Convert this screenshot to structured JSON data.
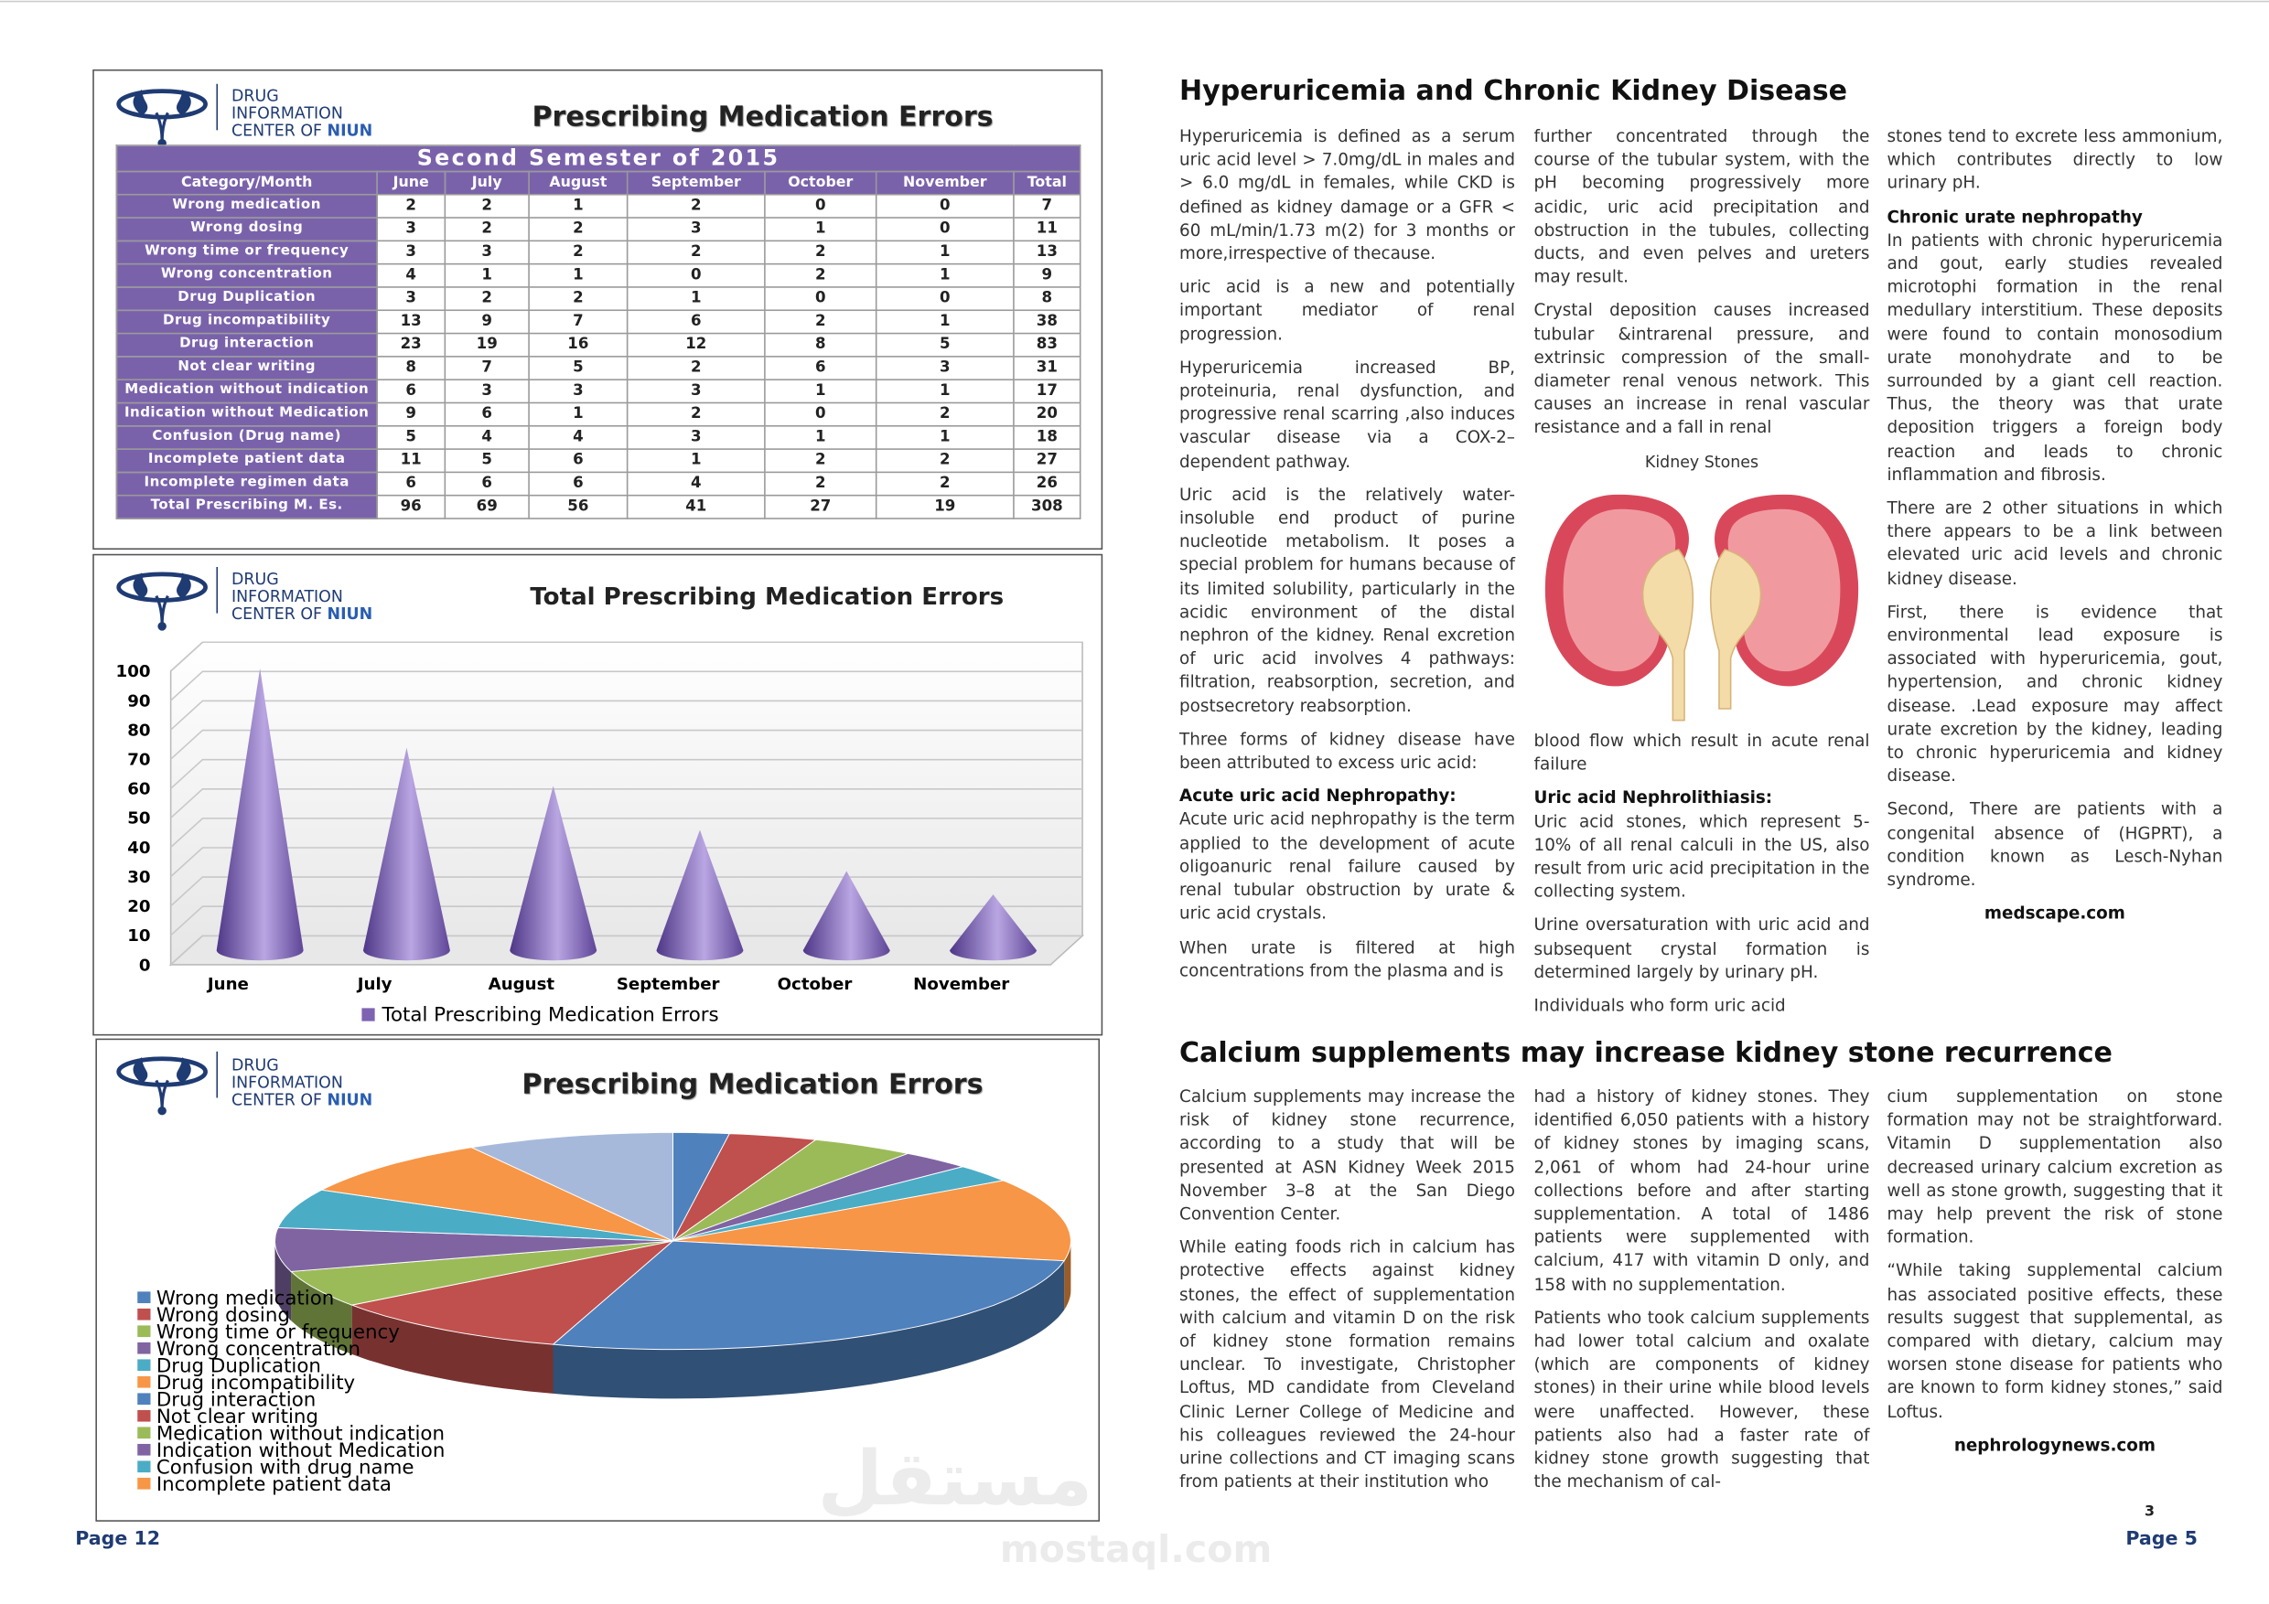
{
  "logo": {
    "line1": "DRUG",
    "line2": "INFORMATION",
    "line3": "CENTER OF",
    "highlight": "NIUN"
  },
  "table": {
    "title": "Prescribing Medication Errors",
    "subtitle": "Second Semester of 2015",
    "header": [
      "Category/Month",
      "June",
      "July",
      "August",
      "September",
      "October",
      "November",
      "Total"
    ],
    "rows": [
      [
        "Wrong medication",
        2,
        2,
        1,
        2,
        0,
        0,
        7
      ],
      [
        "Wrong dosing",
        3,
        2,
        2,
        3,
        1,
        0,
        11
      ],
      [
        "Wrong time or frequency",
        3,
        3,
        2,
        2,
        2,
        1,
        13
      ],
      [
        "Wrong concentration",
        4,
        1,
        1,
        0,
        2,
        1,
        9
      ],
      [
        "Drug Duplication",
        3,
        2,
        2,
        1,
        0,
        0,
        8
      ],
      [
        "Drug incompatibility",
        13,
        9,
        7,
        6,
        2,
        1,
        38
      ],
      [
        "Drug interaction",
        23,
        19,
        16,
        12,
        8,
        5,
        83
      ],
      [
        "Not clear writing",
        8,
        7,
        5,
        2,
        6,
        3,
        31
      ],
      [
        "Medication without indication",
        6,
        3,
        3,
        3,
        1,
        1,
        17
      ],
      [
        "Indication without Medication",
        9,
        6,
        1,
        2,
        0,
        2,
        20
      ],
      [
        "Confusion (Drug name)",
        5,
        4,
        4,
        3,
        1,
        1,
        18
      ],
      [
        "Incomplete patient data",
        11,
        5,
        6,
        1,
        2,
        2,
        27
      ],
      [
        "Incomplete regimen data",
        6,
        6,
        6,
        4,
        2,
        2,
        26
      ],
      [
        "Total Prescribing M. Es.",
        96,
        69,
        56,
        41,
        27,
        19,
        308
      ]
    ]
  },
  "chart_data": [
    {
      "type": "cone",
      "title": "Total Prescribing Medication Errors",
      "categories": [
        "June",
        "July",
        "August",
        "September",
        "October",
        "November"
      ],
      "series": [
        {
          "name": "Total Prescribing Medication Errors",
          "color": "#7e63b3",
          "values": [
            96,
            69,
            56,
            41,
            27,
            19
          ]
        }
      ],
      "ylim": [
        0,
        100
      ],
      "yticks": [
        0,
        10,
        20,
        30,
        40,
        50,
        60,
        70,
        80,
        90,
        100
      ],
      "grid": true,
      "legend": "bottom"
    },
    {
      "type": "pie",
      "title": "Prescribing Medication Errors",
      "categories": [
        "Wrong medication",
        "Wrong dosing",
        "Wrong time or frequency",
        "Wrong concentration",
        "Drug Duplication",
        "Drug incompatibility",
        "Drug interaction",
        "Not clear writing",
        "Medication without indication",
        "Indication without Medication",
        "Confusion with drug name",
        "Incomplete patient data",
        null
      ],
      "values": [
        7,
        11,
        13,
        9,
        8,
        38,
        83,
        31,
        17,
        20,
        18,
        27,
        26
      ],
      "colors": [
        "#4f81bd",
        "#c0504d",
        "#9bbb59",
        "#8064a2",
        "#4bacc6",
        "#f79646",
        "#4f81bd",
        "#c0504d",
        "#9bbb59",
        "#8064a2",
        "#4bacc6",
        "#f79646",
        "#a7b9db"
      ],
      "legend": "left"
    }
  ],
  "articles": [
    {
      "title": "Hyperuricemia and Chronic Kidney Disease",
      "columns": [
        [
          {
            "p": "Hyperuricemia is defined as a serum uric acid level > 7.0mg/dL in males and > 6.0 mg/dL in females, while CKD is defined as kidney damage or a GFR < 60 mL/min/1.73 m(2) for 3 months or more,irrespective of thecause."
          },
          {
            "p": "uric acid is a new and potentially important mediator of renal progression."
          },
          {
            "p": "Hyperuricemia increased BP, proteinuria, renal dysfunction, and progressive renal scarring ,also induces vascular disease via a COX-2–dependent pathway."
          },
          {
            "p": "Uric acid is the relatively water-insoluble end product of purine nucleotide metabolism. It poses a special problem for humans because of its limited solubility, particularly in the acidic environment of the distal nephron of the kidney. Renal excretion of uric acid involves 4 pathways: filtration, reabsorption, secretion, and postsecretory reabsorption."
          },
          {
            "p": "Three forms of kidney disease have been attributed to excess uric acid:"
          },
          {
            "h": "Acute uric acid Nephropathy:"
          },
          {
            "p": "Acute uric acid nephropathy is the term applied to the development of acute oligoanuric renal failure caused by renal tubular obstruction by urate & uric acid crystals."
          },
          {
            "p": "When urate is filtered at high concentrations from the plasma and is"
          }
        ],
        [
          {
            "p": "further concentrated through the course of the tubular system, with the pH becoming progressively more acidic, uric acid precipitation and obstruction in the tubules, collecting ducts, and even pelves and ureters may result."
          },
          {
            "p": "Crystal deposition causes increased tubular &intrarenal pressure, and extrinsic compression of the small-diameter renal venous network. This causes an increase in renal vascular resistance and a fall in renal"
          },
          {
            "caption": "Kidney Stones"
          },
          {
            "p": "blood flow which result in acute renal failure"
          },
          {
            "h": "Uric acid Nephrolithiasis:"
          },
          {
            "p": "Uric acid stones, which represent 5-10% of all renal calculi in the US, also result from uric acid precipitation in the collecting system."
          },
          {
            "p": "Urine oversaturation with uric acid and subsequent crystal formation is determined largely by urinary pH."
          },
          {
            "p": "Individuals who form uric acid"
          }
        ],
        [
          {
            "p": "stones tend to excrete less ammonium, which contributes directly to low urinary pH."
          },
          {
            "h": "Chronic urate nephropathy"
          },
          {
            "p": "In patients with chronic hyperuricemia and gout, early studies revealed microtophi formation in the renal medullary interstitium. These deposits were found to contain monosodium urate monohydrate and to be surrounded by a giant cell reaction. Thus, the theory was that urate deposition triggers a foreign body reaction and leads to chronic inflammation and fibrosis."
          },
          {
            "p": "There are 2 other situations in which there appears to be a link between elevated uric acid levels and chronic kidney disease."
          },
          {
            "p": "First, there is evidence that environmental lead exposure is associated with hyperuricemia, gout, hypertension, and chronic kidney disease. .Lead exposure may affect urate excretion by the kidney, leading to chronic hyperuricemia and kidney disease."
          },
          {
            "p": "Second, There are patients with a congenital absence of (HGPRT), a condition known as Lesch-Nyhan syndrome."
          },
          {
            "source": "medscape.com"
          }
        ]
      ]
    },
    {
      "title": "Calcium supplements may increase kidney stone recurrence",
      "columns": [
        [
          {
            "p": "Calcium supplements may increase the risk of kidney stone recurrence, according to a study that will be presented at ASN Kidney Week 2015 November 3–8 at the San Diego Convention Center."
          },
          {
            "p": "While eating foods rich in calcium has protective effects against kidney stones, the effect of supplementation with calcium and vitamin D on the risk of kidney stone formation remains unclear. To investigate, Christopher Loftus, MD candidate from Cleveland Clinic Lerner College of Medicine and his colleagues reviewed the 24-hour urine collections and CT imaging scans from patients at their institution who"
          }
        ],
        [
          {
            "p": "had a history of kidney stones. They identified 6,050 patients with a history of kidney stones by imaging scans, 2,061 of whom had 24-hour urine collections before and after starting supplementation. A total of 1486 patients were supplemented with calcium, 417 with vitamin D only, and 158 with no supplementation."
          },
          {
            "p": "Patients who took calcium supplements had lower total calcium and oxalate (which are components of kidney stones) in their urine while blood levels were unaffected. However, these patients also had a faster rate of kidney stone growth suggesting that the mechanism of cal-"
          }
        ],
        [
          {
            "p": "cium supplementation on stone formation may not be straightforward. Vitamin D supplementation also decreased urinary calcium excretion as well as stone growth, suggesting that it may help prevent the risk of stone formation."
          },
          {
            "p": "“While taking supplemental calcium has associated positive effects, these results suggest that supplemental, as compared with dietary, calcium may worsen stone disease for patients who are known to form kidney stones,” said Loftus."
          },
          {
            "source": "nephrologynews.com"
          }
        ]
      ]
    }
  ],
  "pages": {
    "left": "Page 12",
    "right": "Page 5",
    "folio": "3"
  },
  "watermark": {
    "arabic": "مستقل",
    "latin": "mostaql.com"
  }
}
